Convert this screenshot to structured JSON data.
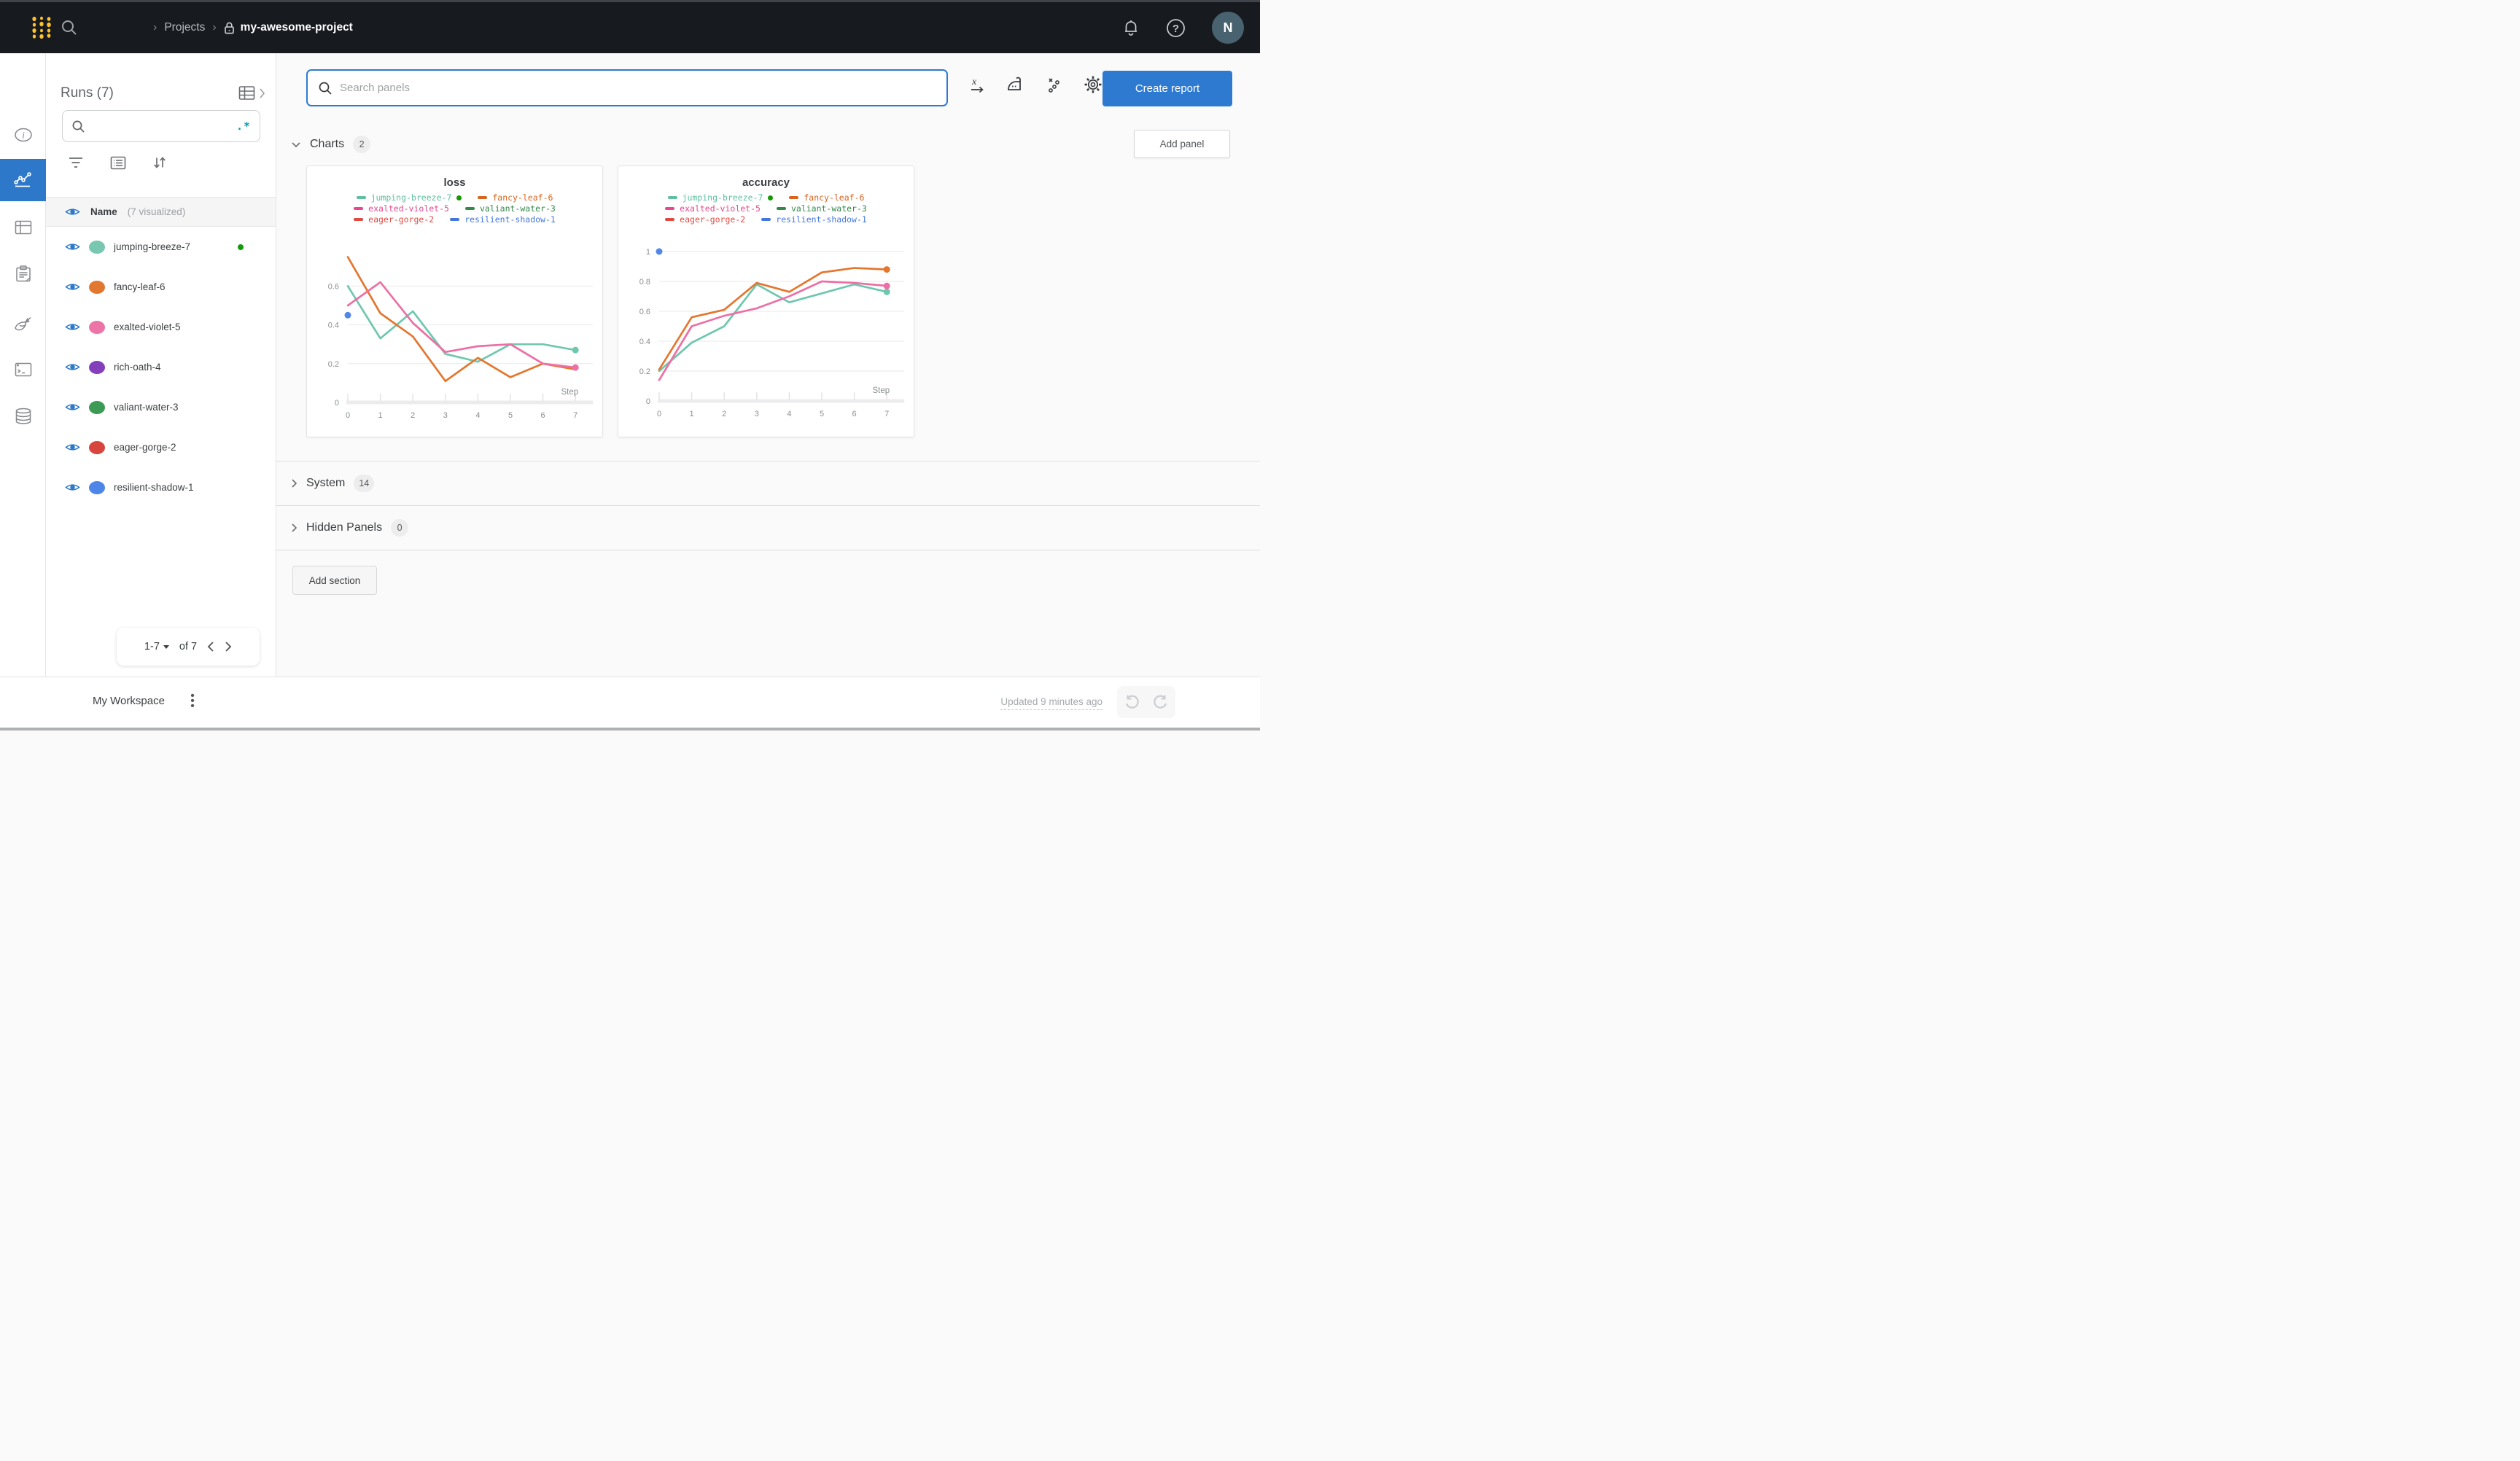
{
  "navbar": {
    "breadcrumb": {
      "projects": "Projects",
      "project_name": "my-awesome-project"
    },
    "avatar_initial": "N"
  },
  "runs_panel": {
    "title": "Runs (7)",
    "search_placeholder": "",
    "regex_hint": ".*",
    "header": {
      "name": "Name",
      "visualized": "(7 visualized)"
    },
    "runs": [
      {
        "name": "jumping-breeze-7",
        "color": "#79c7b0",
        "running": true
      },
      {
        "name": "fancy-leaf-6",
        "color": "#e2782f",
        "running": false
      },
      {
        "name": "exalted-violet-5",
        "color": "#ed74a6",
        "running": false
      },
      {
        "name": "rich-oath-4",
        "color": "#8440bb",
        "running": false
      },
      {
        "name": "valiant-water-3",
        "color": "#3d9a55",
        "running": false
      },
      {
        "name": "eager-gorge-2",
        "color": "#d6463d",
        "running": false
      },
      {
        "name": "resilient-shadow-1",
        "color": "#4e86e8",
        "running": false
      }
    ],
    "pagination": {
      "range": "1-7",
      "of": "of 7"
    }
  },
  "main": {
    "search_placeholder": "Search panels",
    "create_report_label": "Create report",
    "add_panel_label": "Add panel",
    "add_section_label": "Add section",
    "sections": [
      {
        "label": "Charts",
        "count": "2"
      },
      {
        "label": "System",
        "count": "14"
      },
      {
        "label": "Hidden Panels",
        "count": "0"
      }
    ]
  },
  "footer": {
    "workspace": "My Workspace",
    "updated": "Updated 9 minutes ago"
  },
  "colors": {
    "accent_blue": "#2e7ad1",
    "rail_active": "#2e78c9",
    "eye_blue": "#2d78c9",
    "regex_teal": "#0a9aad",
    "live_green": "#149901",
    "logo_gold": "#fcc12f"
  },
  "legend_entries": [
    {
      "label": "jumping-breeze-7",
      "color": "#5fbfa0",
      "running": true
    },
    {
      "label": "fancy-leaf-6",
      "color": "#d9641e",
      "running": false
    },
    {
      "label": "exalted-violet-5",
      "color": "#e8478c",
      "running": false
    },
    {
      "label": "valiant-water-3",
      "color": "#34884b",
      "running": false
    },
    {
      "label": "eager-gorge-2",
      "color": "#e04840",
      "running": false
    },
    {
      "label": "resilient-shadow-1",
      "color": "#4477dd",
      "running": false
    }
  ],
  "chart_data": [
    {
      "type": "line",
      "title": "loss",
      "xlabel": "Step",
      "x": [
        0,
        1,
        2,
        3,
        4,
        5,
        6,
        7
      ],
      "xlim": [
        0,
        7
      ],
      "ylim": [
        0,
        0.84
      ],
      "yticks": [
        0,
        0.2,
        0.4,
        0.6
      ],
      "grid": true,
      "legend_position": "top",
      "series": [
        {
          "name": "jumping-breeze-7",
          "color": "#6fc7ae",
          "values": [
            0.6,
            0.33,
            0.47,
            0.25,
            0.21,
            0.3,
            0.3,
            0.27
          ],
          "end_dot": true
        },
        {
          "name": "fancy-leaf-6",
          "color": "#e4762e",
          "values": [
            0.75,
            0.46,
            0.34,
            0.11,
            0.23,
            0.13,
            0.2,
            0.17
          ],
          "end_dot": false
        },
        {
          "name": "exalted-violet-5",
          "color": "#ec6fa5",
          "values": [
            0.5,
            0.62,
            0.41,
            0.26,
            0.29,
            0.3,
            0.2,
            0.18
          ],
          "end_dot": true
        },
        {
          "name": "resilient-shadow-1",
          "color": "#5287e6",
          "values": [
            0.45
          ],
          "point_only": true
        }
      ],
      "plot": {
        "x0": 56,
        "dx": 44.6,
        "y_zero": 224,
        "y_per_unit": 266
      }
    },
    {
      "type": "line",
      "title": "accuracy",
      "xlabel": "Step",
      "x": [
        0,
        1,
        2,
        3,
        4,
        5,
        6,
        7
      ],
      "xlim": [
        0,
        7
      ],
      "ylim": [
        0,
        1.08
      ],
      "yticks": [
        0,
        0.2,
        0.4,
        0.6,
        0.8,
        1
      ],
      "grid": true,
      "legend_position": "top",
      "series": [
        {
          "name": "jumping-breeze-7",
          "color": "#6fc7ae",
          "values": [
            0.2,
            0.39,
            0.5,
            0.78,
            0.66,
            0.72,
            0.78,
            0.73
          ],
          "end_dot": true
        },
        {
          "name": "exalted-violet-5",
          "color": "#ec6fa5",
          "values": [
            0.14,
            0.5,
            0.57,
            0.62,
            0.7,
            0.8,
            0.79,
            0.77
          ],
          "end_dot": true
        },
        {
          "name": "fancy-leaf-6",
          "color": "#e4762e",
          "values": [
            0.21,
            0.56,
            0.61,
            0.79,
            0.73,
            0.86,
            0.89,
            0.88
          ],
          "end_dot": true
        },
        {
          "name": "resilient-shadow-1",
          "color": "#5287e6",
          "values": [
            1.0
          ],
          "point_only": true
        }
      ],
      "plot": {
        "x0": 56,
        "dx": 44.6,
        "y_zero": 222,
        "y_per_unit": 205
      }
    }
  ]
}
